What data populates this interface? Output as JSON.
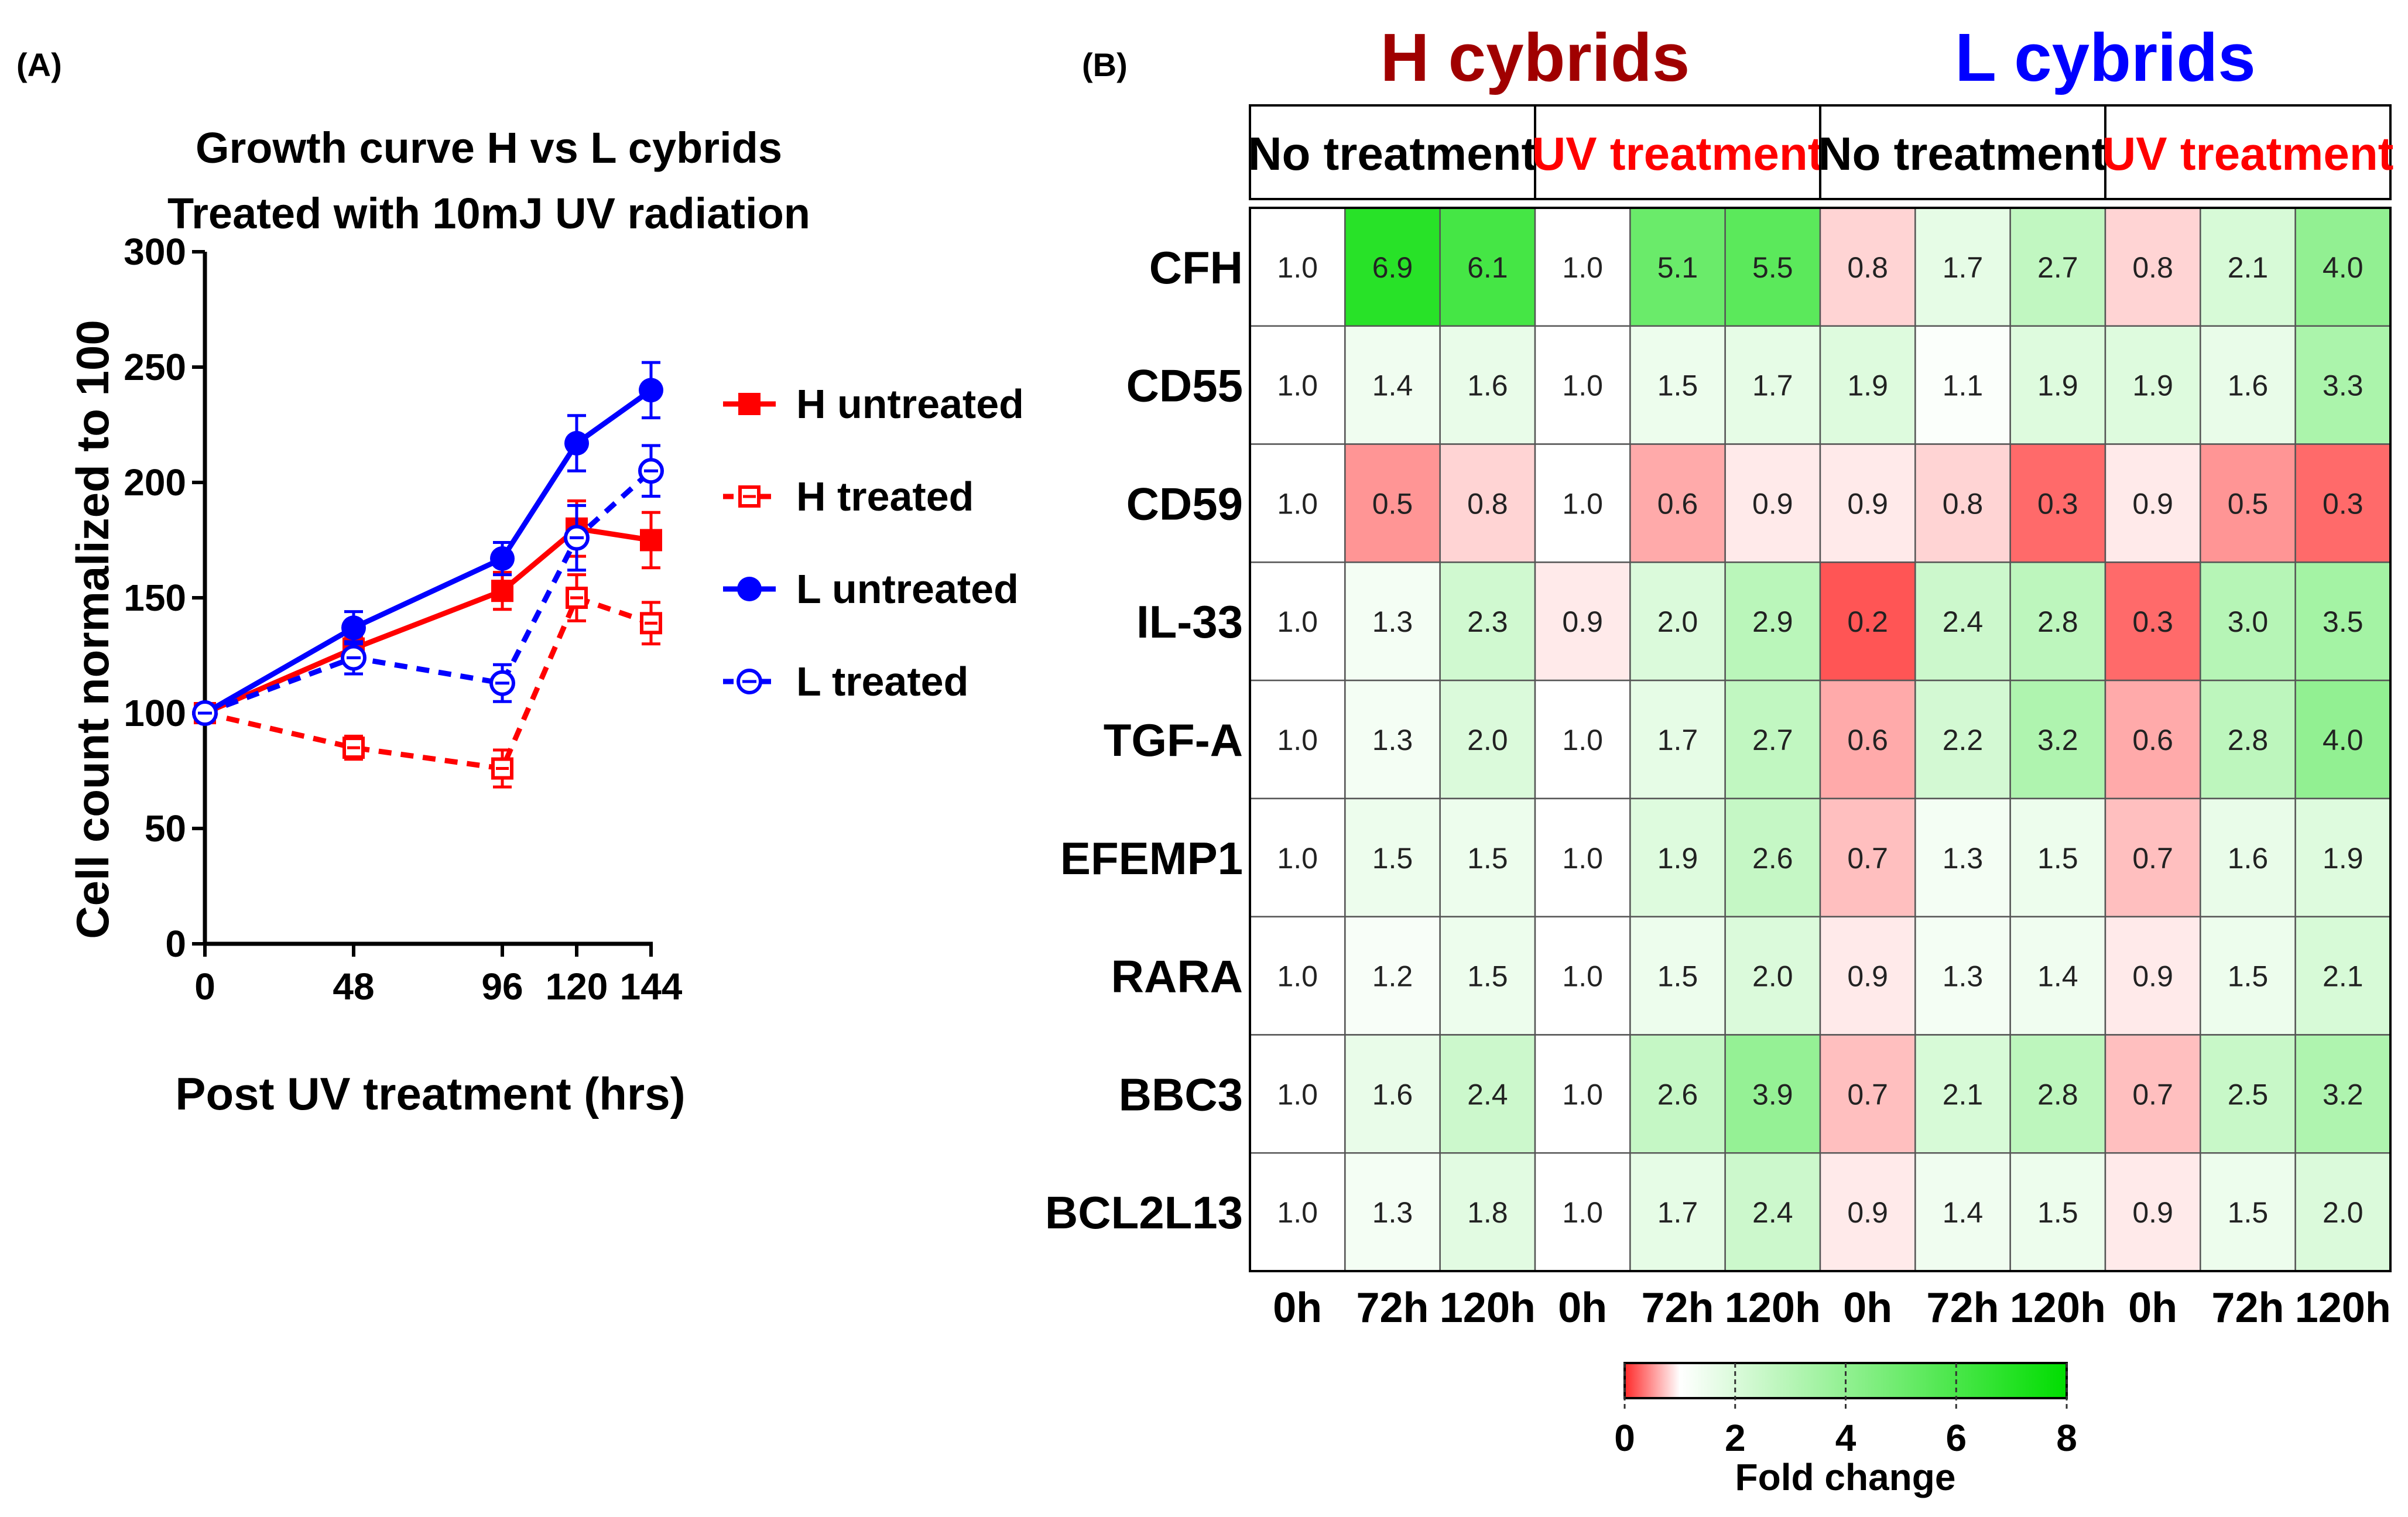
{
  "colors": {
    "red": "#ff0000",
    "blue": "#0000ff",
    "dark_red": "#a00000",
    "heat_low": "#ff2a2a",
    "heat_mid": "#ffffff",
    "heat_high": "#00dd00"
  },
  "panels": {
    "a_label": "(A)",
    "b_label": "(B)"
  },
  "chart_data": [
    {
      "type": "line",
      "title_line1": "Growth curve H vs L cybrids",
      "title_line2": "Treated with 10mJ UV radiation",
      "xlabel": "Post UV treatment (hrs)",
      "ylabel": "Cell count normalized to 100",
      "x": [
        0,
        48,
        96,
        120,
        144
      ],
      "xticks": [
        "0",
        "48",
        "96",
        "120",
        "144"
      ],
      "xlim": [
        0,
        144
      ],
      "ylim": [
        0,
        300
      ],
      "yticks": [
        "0",
        "50",
        "100",
        "150",
        "200",
        "250",
        "300"
      ],
      "legend_position": "right",
      "series": [
        {
          "name": "H untreated",
          "color": "#ff0000",
          "style": "solid",
          "marker": "square-filled",
          "values": [
            100,
            128,
            153,
            180,
            175
          ],
          "errors": [
            3,
            5,
            8,
            12,
            12
          ]
        },
        {
          "name": "H treated",
          "color": "#ff0000",
          "style": "dashed",
          "marker": "square-open",
          "values": [
            100,
            85,
            76,
            150,
            139
          ],
          "errors": [
            3,
            5,
            8,
            10,
            9
          ]
        },
        {
          "name": "L untreated",
          "color": "#0000ff",
          "style": "solid",
          "marker": "circle-filled",
          "values": [
            100,
            137,
            167,
            217,
            240
          ],
          "errors": [
            3,
            7,
            7,
            12,
            12
          ]
        },
        {
          "name": "L treated",
          "color": "#0000ff",
          "style": "dashed",
          "marker": "circle-open",
          "values": [
            100,
            124,
            113,
            176,
            205
          ],
          "errors": [
            3,
            7,
            8,
            14,
            11
          ]
        }
      ]
    },
    {
      "type": "heatmap",
      "group_headers": [
        {
          "label": "H cybrids",
          "color": "#a00000"
        },
        {
          "label": "L cybrids",
          "color": "#0000ff"
        }
      ],
      "conditions": [
        {
          "label": "No treatment",
          "color": "#000000"
        },
        {
          "label": "UV treatment",
          "color": "#ff0000"
        },
        {
          "label": "No treatment",
          "color": "#000000"
        },
        {
          "label": "UV treatment",
          "color": "#ff0000"
        }
      ],
      "columns": [
        "0h",
        "72h",
        "120h",
        "0h",
        "72h",
        "120h",
        "0h",
        "72h",
        "120h",
        "0h",
        "72h",
        "120h"
      ],
      "rows": [
        "CFH",
        "CD55",
        "CD59",
        "IL-33",
        "TGF-A",
        "EFEMP1",
        "RARA",
        "BBC3",
        "BCL2L13"
      ],
      "values": [
        [
          1.0,
          6.9,
          6.1,
          1.0,
          5.1,
          5.5,
          0.8,
          1.7,
          2.7,
          0.8,
          2.1,
          4.0
        ],
        [
          1.0,
          1.4,
          1.6,
          1.0,
          1.5,
          1.7,
          1.9,
          1.1,
          1.9,
          1.9,
          1.6,
          3.3
        ],
        [
          1.0,
          0.5,
          0.8,
          1.0,
          0.6,
          0.9,
          0.9,
          0.8,
          0.3,
          0.9,
          0.5,
          0.3
        ],
        [
          1.0,
          1.3,
          2.3,
          0.9,
          2.0,
          2.9,
          0.2,
          2.4,
          2.8,
          0.3,
          3.0,
          3.5
        ],
        [
          1.0,
          1.3,
          2.0,
          1.0,
          1.7,
          2.7,
          0.6,
          2.2,
          3.2,
          0.6,
          2.8,
          4.0
        ],
        [
          1.0,
          1.5,
          1.5,
          1.0,
          1.9,
          2.6,
          0.7,
          1.3,
          1.5,
          0.7,
          1.6,
          1.9
        ],
        [
          1.0,
          1.2,
          1.5,
          1.0,
          1.5,
          2.0,
          0.9,
          1.3,
          1.4,
          0.9,
          1.5,
          2.1
        ],
        [
          1.0,
          1.6,
          2.4,
          1.0,
          2.6,
          3.9,
          0.7,
          2.1,
          2.8,
          0.7,
          2.5,
          3.2
        ],
        [
          1.0,
          1.3,
          1.8,
          1.0,
          1.7,
          2.4,
          0.9,
          1.4,
          1.5,
          0.9,
          1.5,
          2.0
        ]
      ],
      "colorbar": {
        "label": "Fold change",
        "range": [
          0,
          8
        ],
        "ticks": [
          "0",
          "2",
          "4",
          "6",
          "8"
        ]
      }
    }
  ]
}
